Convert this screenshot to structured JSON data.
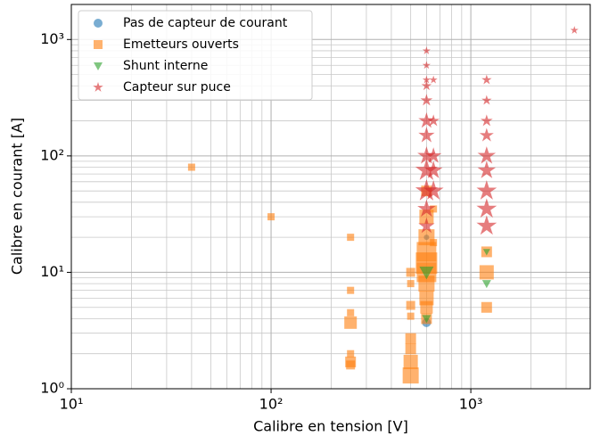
{
  "chart_data": {
    "type": "scatter",
    "xlabel": "Calibre en tension [V]",
    "ylabel": "Calibre en courant [A]",
    "xscale": "log",
    "yscale": "log",
    "xlim": [
      10,
      3960
    ],
    "ylim": [
      1,
      2000
    ],
    "xticks": [
      {
        "value": 10,
        "label": "10¹"
      },
      {
        "value": 100,
        "label": "10²"
      },
      {
        "value": 1000,
        "label": "10³"
      }
    ],
    "yticks": [
      {
        "value": 1,
        "label": "10⁰"
      },
      {
        "value": 10,
        "label": "10¹"
      },
      {
        "value": 100,
        "label": "10²"
      },
      {
        "value": 1000,
        "label": "10³"
      }
    ],
    "xminorticks": [
      20,
      30,
      40,
      50,
      60,
      70,
      80,
      90,
      200,
      300,
      400,
      500,
      600,
      700,
      800,
      900,
      2000,
      3000
    ],
    "yminorticks": [
      2,
      3,
      4,
      5,
      6,
      7,
      8,
      9,
      20,
      30,
      40,
      50,
      60,
      70,
      80,
      90,
      200,
      300,
      400,
      500,
      600,
      700,
      800,
      900
    ],
    "grid": true,
    "legend": "upper left",
    "series": [
      {
        "name": "Pas de capteur de courant",
        "color": "#1f77b4",
        "marker": "circle",
        "x": [
          600,
          600
        ],
        "values": [
          3.7,
          20
        ],
        "sizes": [
          5,
          3
        ]
      },
      {
        "name": "Emetteurs ouverts",
        "color": "#ff7f0e",
        "marker": "square",
        "x": [
          40,
          100,
          250,
          250,
          250,
          250,
          250,
          250,
          250,
          500,
          500,
          500,
          500,
          500,
          500,
          500,
          500,
          600,
          600,
          600,
          600,
          600,
          600,
          600,
          600,
          600,
          600,
          650,
          650,
          1200,
          1200,
          1200
        ],
        "values": [
          80,
          30,
          20,
          7,
          4.5,
          3.7,
          2,
          1.7,
          1.6,
          10,
          8,
          5.2,
          4.2,
          2.7,
          2.2,
          1.7,
          1.3,
          50,
          30,
          20,
          15,
          12,
          10,
          8,
          6,
          5,
          4,
          35,
          18,
          15,
          10,
          5
        ],
        "sizes": [
          4,
          4,
          4,
          4,
          4,
          7,
          4,
          6,
          5,
          5,
          4,
          5,
          4,
          6,
          6,
          8,
          9,
          6,
          8,
          9,
          11,
          12,
          11,
          9,
          8,
          7,
          6,
          4,
          4,
          6,
          8,
          6
        ]
      },
      {
        "name": "Shunt interne",
        "color": "#2ca02c",
        "marker": "triangle",
        "x": [
          600,
          600,
          1200,
          1200
        ],
        "values": [
          10,
          4,
          8,
          15
        ],
        "sizes": [
          8,
          5,
          5,
          4
        ]
      },
      {
        "name": "Capteur sur puce",
        "color": "#d62728",
        "marker": "star",
        "x": [
          3300,
          600,
          600,
          600,
          600,
          600,
          600,
          600,
          600,
          600,
          600,
          600,
          600,
          650,
          650,
          650,
          650,
          650,
          1200,
          1200,
          1200,
          1200,
          1200,
          1200,
          1200,
          1200,
          1200
        ],
        "values": [
          1200,
          800,
          600,
          450,
          400,
          300,
          200,
          150,
          100,
          75,
          50,
          35,
          25,
          450,
          200,
          100,
          75,
          50,
          450,
          300,
          200,
          150,
          100,
          75,
          50,
          35,
          25
        ],
        "sizes": [
          4,
          4,
          4,
          4,
          5,
          6,
          8,
          8,
          9,
          11,
          11,
          9,
          8,
          4,
          6,
          8,
          9,
          10,
          5,
          5,
          6,
          7,
          9,
          9,
          10,
          10,
          10
        ]
      }
    ]
  }
}
